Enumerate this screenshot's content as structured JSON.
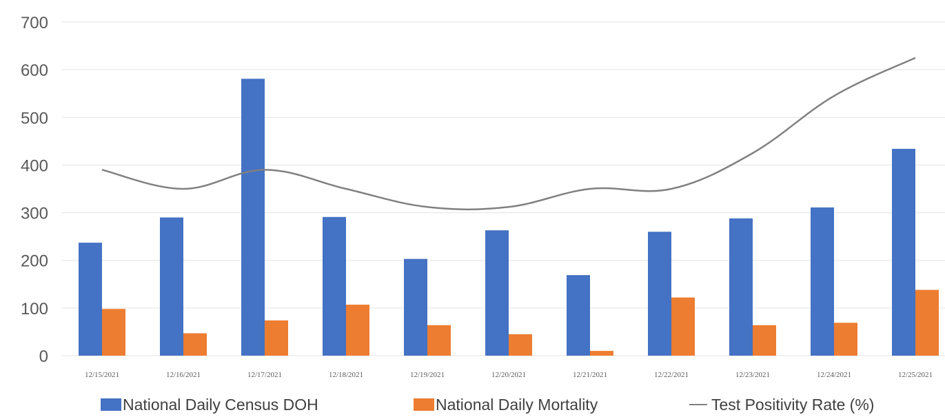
{
  "chart_data": {
    "type": "bar",
    "title": "",
    "categories": [
      "12/15/2021",
      "12/16/2021",
      "12/17/2021",
      "12/18/2021",
      "12/19/2021",
      "12/20/2021",
      "12/21/2021",
      "12/22/2021",
      "12/23/2021",
      "12/24/2021",
      "12/25/2021"
    ],
    "series": [
      {
        "name": "National Daily Census DOH",
        "type": "bar",
        "color": "#4472C4",
        "values": [
          237,
          290,
          581,
          291,
          203,
          263,
          169,
          260,
          288,
          311,
          434
        ]
      },
      {
        "name": "National Daily Mortality",
        "type": "bar",
        "color": "#ED7D31",
        "values": [
          98,
          47,
          74,
          107,
          64,
          45,
          10,
          122,
          64,
          69,
          138
        ]
      },
      {
        "name": "Test Positivity Rate (%)",
        "type": "line",
        "color": "#808080",
        "values": [
          390,
          350,
          390,
          350,
          312,
          312,
          350,
          350,
          425,
          545,
          625
        ]
      }
    ],
    "y_ticks": [
      "0",
      "100",
      "200",
      "300",
      "400",
      "500",
      "600",
      "700"
    ],
    "ylim": [
      0,
      700
    ],
    "grid": true,
    "legend_position": "bottom"
  }
}
